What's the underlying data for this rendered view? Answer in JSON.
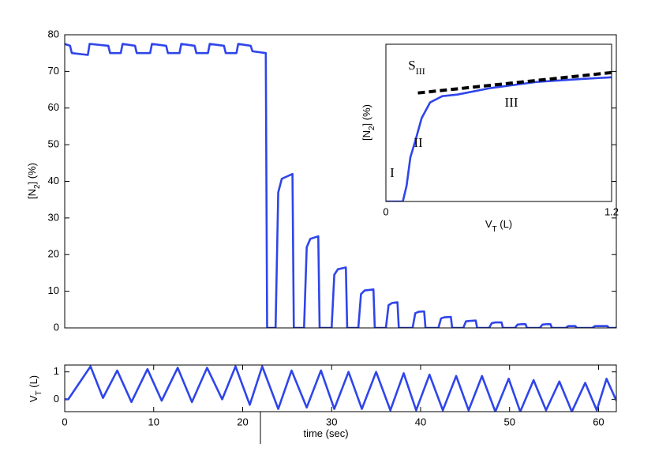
{
  "chart_data": [
    {
      "type": "line",
      "ylabel": [
        "[N",
        "2",
        "] (%)"
      ],
      "ylim": [
        0,
        80
      ],
      "yticks": [
        0,
        10,
        20,
        30,
        40,
        50,
        60,
        70,
        80
      ],
      "xlim": [
        0,
        62
      ],
      "series": [
        {
          "color": "#2f45ea",
          "x": [
            0,
            0.6,
            0.8,
            2.6,
            2.8,
            4.9,
            5.1,
            6.3,
            6.5,
            7.9,
            8.1,
            9.6,
            9.8,
            11.4,
            11.6,
            12.9,
            13.1,
            14.6,
            14.8,
            16.1,
            16.3,
            17.9,
            18.1,
            19.3,
            19.5,
            20.9,
            21.1,
            22.6,
            22.75,
            23.7,
            24.0,
            24.4,
            25.6,
            25.75,
            26.9,
            27.2,
            27.6,
            28.5,
            28.65,
            30.0,
            30.3,
            30.7,
            31.6,
            31.75,
            33.0,
            33.3,
            33.7,
            34.7,
            34.85,
            36.1,
            36.4,
            36.8,
            37.4,
            37.55,
            39.1,
            39.4,
            39.8,
            40.4,
            40.55,
            42.0,
            42.3,
            42.7,
            43.4,
            43.55,
            44.8,
            45.1,
            45.5,
            46.2,
            46.35,
            47.7,
            48.0,
            48.4,
            49.1,
            49.25,
            50.6,
            50.9,
            51.3,
            51.8,
            51.95,
            53.4,
            53.7,
            54.1,
            54.6,
            54.75,
            56.3,
            56.6,
            57.0,
            57.4,
            57.55,
            59.3,
            59.6,
            60.0,
            61.0,
            61.15,
            62
          ],
          "values": [
            77.5,
            77,
            75,
            74.5,
            77.5,
            77,
            75,
            75,
            77.5,
            77,
            75,
            75,
            77.5,
            77,
            75,
            75,
            77.5,
            77,
            75,
            75,
            77.5,
            77,
            75,
            75,
            77.5,
            77,
            75.5,
            75,
            0,
            0,
            37,
            40.7,
            42,
            0,
            0,
            22,
            24.3,
            25,
            0,
            0,
            14.5,
            16,
            16.5,
            0,
            0,
            9.2,
            10.2,
            10.5,
            0,
            0,
            6.2,
            6.8,
            7,
            0,
            0,
            4,
            4.4,
            4.5,
            0,
            0,
            2.6,
            2.9,
            3,
            0,
            0,
            1.8,
            1.9,
            2,
            0,
            0,
            1.3,
            1.5,
            1.5,
            0,
            0,
            0.9,
            1,
            1,
            0,
            0,
            0.9,
            1,
            1,
            0,
            0,
            0.5,
            0.5,
            0.5,
            0,
            0,
            0.5,
            0.5,
            0.5,
            0,
            0
          ]
        }
      ]
    },
    {
      "type": "line",
      "ylabel": [
        "V",
        "T",
        " (L)"
      ],
      "xlabel": [
        "time (sec)"
      ],
      "ylim": [
        -0.45,
        1.25
      ],
      "yticks": [
        0,
        1
      ],
      "xlim": [
        0,
        62
      ],
      "xticks": [
        0,
        10,
        20,
        30,
        40,
        50,
        60
      ],
      "series": [
        {
          "color": "#2f45ea",
          "x": [
            0,
            0.4,
            2.9,
            4.3,
            5.9,
            7.5,
            9.3,
            10.9,
            12.7,
            14.3,
            16,
            17.7,
            19.2,
            20.8,
            22.2,
            24,
            25.5,
            27.2,
            28.8,
            30.3,
            31.9,
            33.4,
            35,
            36.6,
            38.1,
            39.5,
            41,
            42.5,
            44,
            45.4,
            46.9,
            48.4,
            49.9,
            51.2,
            52.7,
            54.1,
            55.6,
            57,
            58.5,
            59.8,
            60.9,
            62
          ],
          "values": [
            0,
            0,
            1.2,
            0.05,
            1.05,
            -0.1,
            1.1,
            -0.05,
            1.15,
            -0.1,
            1.15,
            0,
            1.2,
            -0.2,
            1.2,
            -0.35,
            1.05,
            -0.3,
            1.05,
            -0.35,
            1.0,
            -0.35,
            1.0,
            -0.4,
            0.95,
            -0.4,
            0.9,
            -0.4,
            0.85,
            -0.4,
            0.85,
            -0.45,
            0.75,
            -0.45,
            0.7,
            -0.4,
            0.65,
            -0.45,
            0.6,
            -0.4,
            0.75,
            -0.05
          ]
        }
      ]
    },
    {
      "type": "line",
      "ylabel": [
        "[N",
        "2",
        "] (%)"
      ],
      "xlabel": [
        "V",
        "T",
        " (L)"
      ],
      "ylim": [
        0,
        100
      ],
      "xlim": [
        0,
        1.2
      ],
      "xticks": [
        0,
        1.2
      ],
      "annotations": [
        [
          "S",
          "III"
        ],
        [
          "I"
        ],
        [
          "II"
        ],
        [
          "III"
        ]
      ],
      "series": [
        {
          "color": "#2f45ea",
          "x": [
            0,
            0.09,
            0.11,
            0.13,
            0.16,
            0.19,
            0.235,
            0.3,
            0.38,
            0.55,
            0.8,
            1.05,
            1.2
          ],
          "values": [
            0,
            0,
            10,
            28,
            40,
            53,
            63,
            67,
            68,
            72,
            76,
            78,
            79
          ]
        },
        {
          "color": "#000000",
          "dashed": true,
          "x": [
            0.17,
            1.2
          ],
          "values": [
            69,
            82
          ]
        }
      ]
    }
  ]
}
